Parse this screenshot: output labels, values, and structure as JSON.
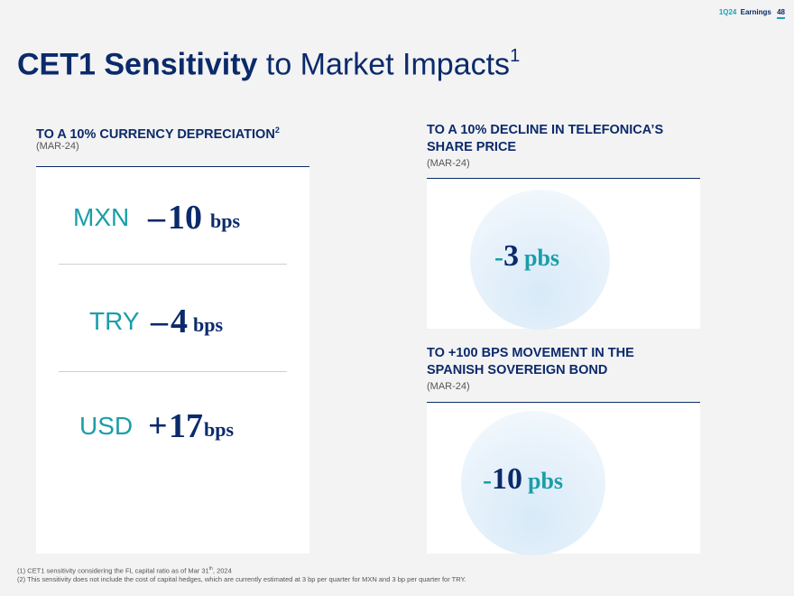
{
  "header": {
    "tag": "1Q24",
    "label": "Earnings",
    "page": "48"
  },
  "title": {
    "bold": "CET1 Sensitivity",
    "rest": " to Market Impacts",
    "sup": "1"
  },
  "currency_panel": {
    "title": "TO A 10% CURRENCY DEPRECIATION",
    "title_sup": "2",
    "subtitle": "(MAR-24)",
    "rows": [
      {
        "currency": "MXN",
        "sign": "–",
        "value": "10",
        "unit": "bps"
      },
      {
        "currency": "TRY",
        "sign": "–",
        "value": "4",
        "unit": "bps"
      },
      {
        "currency": "USD",
        "sign": "+",
        "value": "17",
        "unit": "bps"
      }
    ]
  },
  "telefonica_panel": {
    "title_line1": "TO A 10% DECLINE IN TELEFONICA’S",
    "title_line2": "SHARE PRICE",
    "subtitle": "(MAR-24)",
    "sign": "-",
    "value": "3",
    "unit": "pbs"
  },
  "bond_panel": {
    "title_line1": "TO +100 BPS MOVEMENT IN THE",
    "title_line2": "SPANISH SOVEREIGN BOND",
    "subtitle": "(MAR-24)",
    "sign": "-",
    "value": "10",
    "unit": "pbs"
  },
  "footnotes": {
    "fn1_pre": "(1) CET1 sensitivity considering the FL capital ratio as of Mar 31",
    "fn1_sup": "th",
    "fn1_post": ", 2024",
    "fn2": "(2) This sensitivity does not include the cost of capital hedges, which are currently estimated at 3 bp per quarter for MXN and 3 bp per quarter for TRY."
  },
  "colors": {
    "navy": "#0b2a6b",
    "teal": "#1a9ea8",
    "background": "#f3f3f3"
  }
}
